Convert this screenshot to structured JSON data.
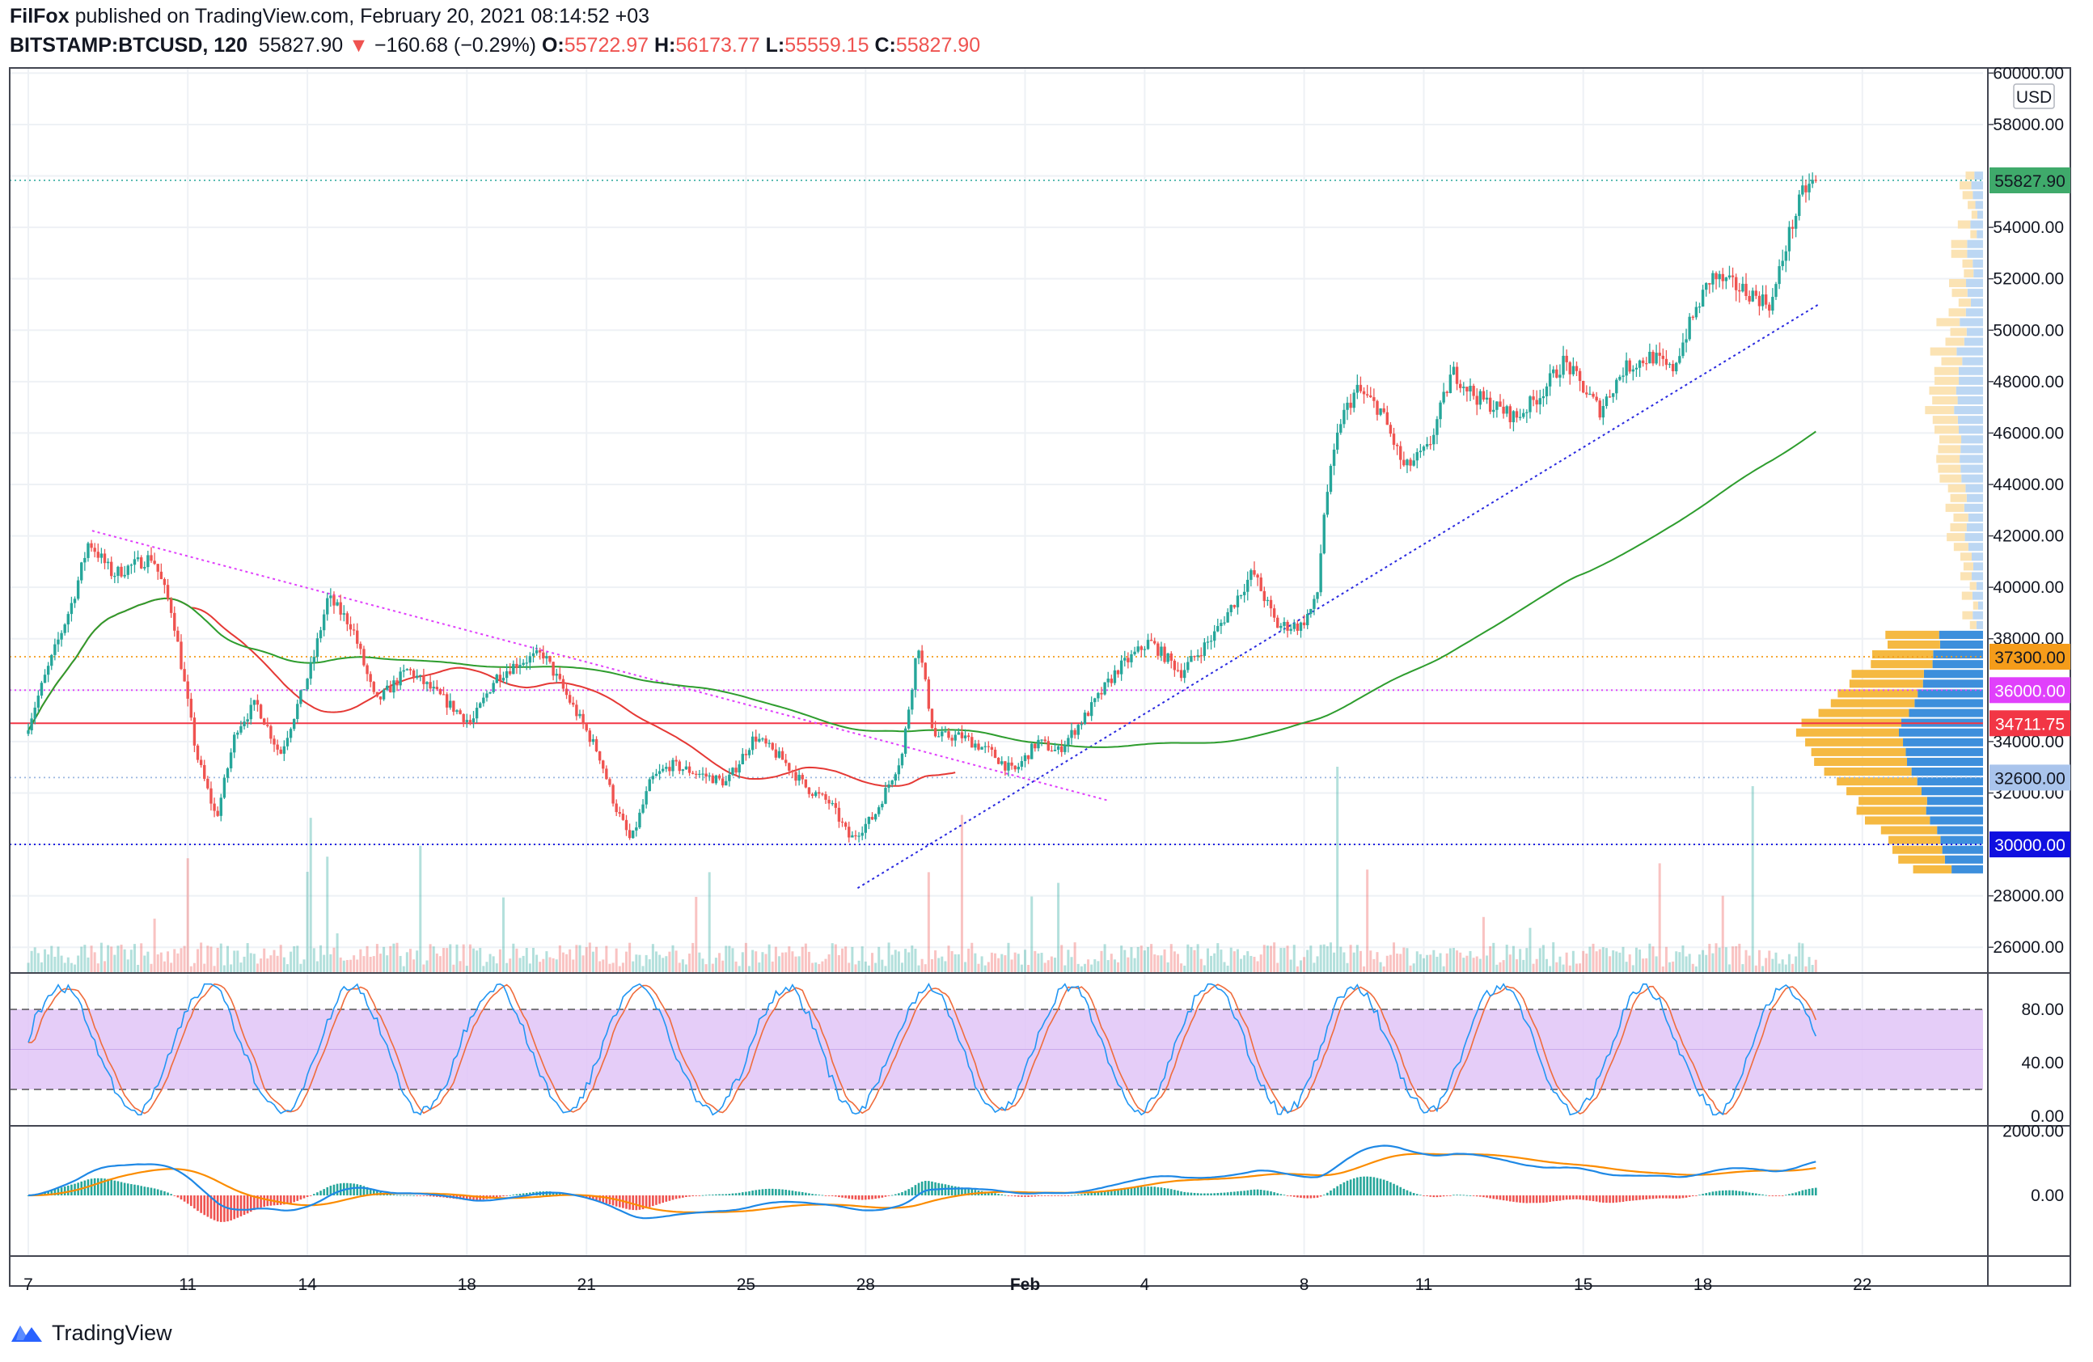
{
  "header": {
    "author": "FilFox",
    "published": "published on TradingView.com, February 20, 2021 08:14:52 +03",
    "symbol": "BITSTAMP:BTCUSD, 120",
    "last": "55827.90",
    "change_arrow": "▼",
    "change": "−160.68 (−0.29%)",
    "o_label": "O:",
    "o": "55722.97",
    "h_label": "H:",
    "h": "56173.77",
    "l_label": "L:",
    "l": "55559.15",
    "c_label": "C:",
    "c": "55827.90"
  },
  "footer": {
    "brand": "TradingView",
    "logo_icon": "tradingview-logo-icon"
  },
  "colors": {
    "up": "#26a69a",
    "down": "#ef5350",
    "ma_fast": "#e53935",
    "ma_slow": "#2e9d2e",
    "stoch_k": "#2196f3",
    "stoch_d": "#ef6c3c",
    "stoch_band": "#e1c4f7",
    "macd": "#1e88e5",
    "signal": "#fb8c00"
  },
  "chart_data": {
    "type": "candlestick",
    "price_axis": {
      "unit_label": "USD",
      "ticks": [
        "60000.00",
        "58000.00",
        "54000.00",
        "52000.00",
        "50000.00",
        "48000.00",
        "46000.00",
        "44000.00",
        "42000.00",
        "40000.00",
        "38000.00",
        "34000.00",
        "32000.00",
        "28000.00",
        "26000.00"
      ],
      "range": [
        25000,
        60200
      ]
    },
    "time_axis": {
      "labels": [
        {
          "label": "7",
          "day": 0
        },
        {
          "label": "11",
          "day": 4
        },
        {
          "label": "14",
          "day": 7
        },
        {
          "label": "18",
          "day": 11
        },
        {
          "label": "21",
          "day": 14
        },
        {
          "label": "25",
          "day": 18
        },
        {
          "label": "28",
          "day": 21
        },
        {
          "label": "Feb",
          "day": 25
        },
        {
          "label": "4",
          "day": 28
        },
        {
          "label": "8",
          "day": 32
        },
        {
          "label": "11",
          "day": 35
        },
        {
          "label": "15",
          "day": 39
        },
        {
          "label": "18",
          "day": 42
        },
        {
          "label": "22",
          "day": 46
        }
      ]
    },
    "last_price": {
      "label": "55827.90",
      "value": 55827.9,
      "color": "#26a69a"
    },
    "horizontal_levels": [
      {
        "label": "37300.00",
        "value": 37300,
        "color": "#f59c1a",
        "style": "dotted"
      },
      {
        "label": "36000.00",
        "value": 36000,
        "color": "#e040fb",
        "style": "dotted"
      },
      {
        "label": "34711.75",
        "value": 34711.75,
        "color": "#f23645",
        "style": "solid"
      },
      {
        "label": "32600.00",
        "value": 32600,
        "color": "#9bb7e0",
        "style": "dotted"
      },
      {
        "label": "30000.00",
        "value": 30000,
        "color": "#1010e0",
        "style": "dotted"
      }
    ],
    "trendlines": [
      {
        "name": "downtrend",
        "color": "#e040fb",
        "from": {
          "day": 1.6,
          "price": 42200
        },
        "to": {
          "day": 27.1,
          "price": 31700
        }
      },
      {
        "name": "uptrend",
        "color": "#2a2ae0",
        "from": {
          "day": 20.8,
          "price": 28300
        },
        "to": {
          "day": 44.9,
          "price": 51000
        }
      }
    ],
    "price_path": [
      {
        "day": 0,
        "price": 34300
      },
      {
        "day": 0.5,
        "price": 36500
      },
      {
        "day": 1.2,
        "price": 39500
      },
      {
        "day": 1.6,
        "price": 41800
      },
      {
        "day": 2.2,
        "price": 40500
      },
      {
        "day": 3.2,
        "price": 41200
      },
      {
        "day": 3.7,
        "price": 39000
      },
      {
        "day": 4.3,
        "price": 33500
      },
      {
        "day": 4.8,
        "price": 31000
      },
      {
        "day": 5.3,
        "price": 34500
      },
      {
        "day": 5.8,
        "price": 35500
      },
      {
        "day": 6.4,
        "price": 33500
      },
      {
        "day": 7.2,
        "price": 37000
      },
      {
        "day": 7.6,
        "price": 39600
      },
      {
        "day": 8.2,
        "price": 38500
      },
      {
        "day": 8.8,
        "price": 35500
      },
      {
        "day": 9.6,
        "price": 36800
      },
      {
        "day": 10.6,
        "price": 35500
      },
      {
        "day": 11.2,
        "price": 34700
      },
      {
        "day": 11.8,
        "price": 36500
      },
      {
        "day": 12.4,
        "price": 37100
      },
      {
        "day": 13.0,
        "price": 37400
      },
      {
        "day": 13.8,
        "price": 35200
      },
      {
        "day": 14.4,
        "price": 33500
      },
      {
        "day": 14.8,
        "price": 31500
      },
      {
        "day": 15.2,
        "price": 30100
      },
      {
        "day": 15.7,
        "price": 32500
      },
      {
        "day": 16.2,
        "price": 33100
      },
      {
        "day": 17.0,
        "price": 32700
      },
      {
        "day": 17.6,
        "price": 32400
      },
      {
        "day": 18.3,
        "price": 34200
      },
      {
        "day": 19.0,
        "price": 33300
      },
      {
        "day": 19.6,
        "price": 32200
      },
      {
        "day": 20.2,
        "price": 31600
      },
      {
        "day": 20.7,
        "price": 30200
      },
      {
        "day": 21.3,
        "price": 31100
      },
      {
        "day": 22.0,
        "price": 33500
      },
      {
        "day": 22.4,
        "price": 37900
      },
      {
        "day": 22.8,
        "price": 34200
      },
      {
        "day": 23.5,
        "price": 34200
      },
      {
        "day": 24.2,
        "price": 33600
      },
      {
        "day": 24.8,
        "price": 32800
      },
      {
        "day": 25.4,
        "price": 34000
      },
      {
        "day": 25.9,
        "price": 33600
      },
      {
        "day": 26.6,
        "price": 35000
      },
      {
        "day": 27.4,
        "price": 36800
      },
      {
        "day": 28.2,
        "price": 37900
      },
      {
        "day": 29.0,
        "price": 36700
      },
      {
        "day": 29.8,
        "price": 38100
      },
      {
        "day": 30.8,
        "price": 40600
      },
      {
        "day": 31.4,
        "price": 38500
      },
      {
        "day": 32.0,
        "price": 38500
      },
      {
        "day": 32.4,
        "price": 39500
      },
      {
        "day": 32.6,
        "price": 43200
      },
      {
        "day": 33.0,
        "price": 46500
      },
      {
        "day": 33.4,
        "price": 47700
      },
      {
        "day": 34.0,
        "price": 46900
      },
      {
        "day": 34.6,
        "price": 44600
      },
      {
        "day": 35.2,
        "price": 45400
      },
      {
        "day": 35.8,
        "price": 48400
      },
      {
        "day": 36.4,
        "price": 47400
      },
      {
        "day": 37.4,
        "price": 46600
      },
      {
        "day": 38.0,
        "price": 47500
      },
      {
        "day": 38.6,
        "price": 48800
      },
      {
        "day": 39.2,
        "price": 47500
      },
      {
        "day": 39.5,
        "price": 46900
      },
      {
        "day": 40.1,
        "price": 48500
      },
      {
        "day": 40.8,
        "price": 49000
      },
      {
        "day": 41.3,
        "price": 48400
      },
      {
        "day": 41.8,
        "price": 50400
      },
      {
        "day": 42.3,
        "price": 52100
      },
      {
        "day": 43.2,
        "price": 51500
      },
      {
        "day": 43.8,
        "price": 51000
      },
      {
        "day": 44.2,
        "price": 53500
      },
      {
        "day": 44.6,
        "price": 55400
      },
      {
        "day": 44.9,
        "price": 55830
      }
    ],
    "stochastic": {
      "ticks": [
        "80.00",
        "40.00",
        "0.00"
      ],
      "upper": 80,
      "lower": 20,
      "range": [
        0,
        100
      ]
    },
    "macd": {
      "ticks": [
        "2000.00",
        "0.00"
      ],
      "range": [
        -1700,
        2150
      ]
    },
    "volume_profile": {
      "note_levels": [
        "37300.00",
        "36000.00",
        "34711.75",
        "32600.00",
        "30000.00"
      ]
    }
  }
}
